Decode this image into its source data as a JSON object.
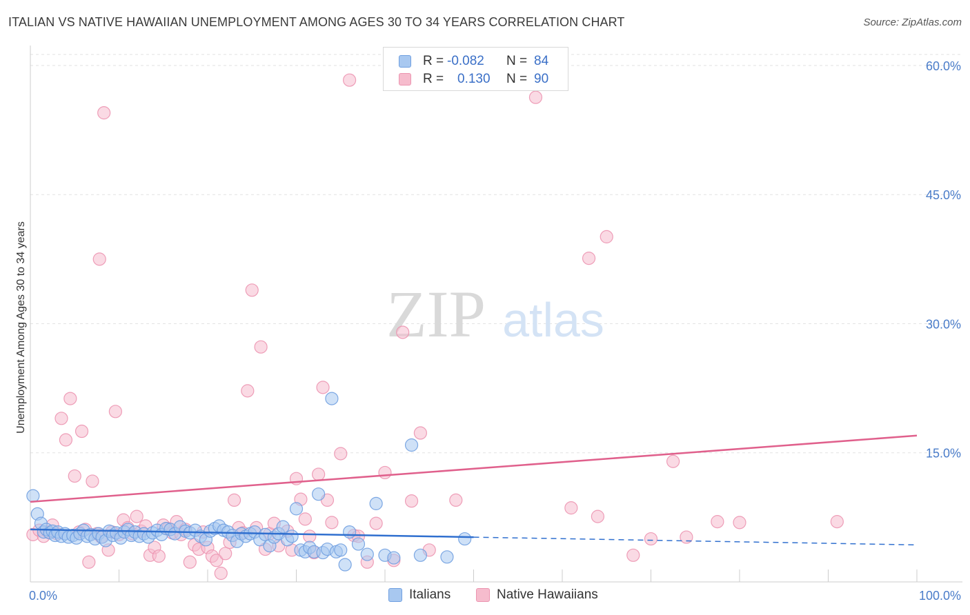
{
  "header": {
    "title": "ITALIAN VS NATIVE HAWAIIAN UNEMPLOYMENT AMONG AGES 30 TO 34 YEARS CORRELATION CHART",
    "source": "Source: ZipAtlas.com"
  },
  "watermark": {
    "zip": "ZIP",
    "atlas": "atlas"
  },
  "legend": {
    "r_label": "R =",
    "n_label": "N =",
    "rows": [
      {
        "r": "-0.082",
        "n": "84"
      },
      {
        "r": "0.130",
        "n": "90"
      }
    ]
  },
  "chart_data": {
    "type": "scatter",
    "title": "ITALIAN VS NATIVE HAWAIIAN UNEMPLOYMENT AMONG AGES 30 TO 34 YEARS CORRELATION CHART",
    "xlabel": "",
    "ylabel": "Unemployment Among Ages 30 to 34 years",
    "xlim": [
      0,
      100
    ],
    "ylim": [
      0,
      62
    ],
    "x_tick_labels": [
      "0.0%",
      "100.0%"
    ],
    "y_ticks": [
      15,
      30,
      45,
      60
    ],
    "y_tick_labels": [
      "15.0%",
      "30.0%",
      "45.0%",
      "60.0%"
    ],
    "grid": true,
    "legend_position": "top-center",
    "colors": {
      "italians_fill": "#a8c8f0",
      "italians_stroke": "#6f9fe0",
      "italians_line": "#2f6fcf",
      "hawaiians_fill": "#f6bccd",
      "hawaiians_stroke": "#ec94b0",
      "hawaiians_line": "#e0608c",
      "tick_label": "#4a7cc9",
      "grid": "#e2e2e2"
    },
    "series": [
      {
        "name": "Italians",
        "r": -0.082,
        "n": 84,
        "trend": {
          "x0": 0,
          "y0": 6.1,
          "x1": 100,
          "y1": 4.3,
          "solid_until": 50
        },
        "points": [
          [
            0.3,
            10.0
          ],
          [
            0.8,
            7.9
          ],
          [
            1.2,
            6.8
          ],
          [
            1.5,
            5.8
          ],
          [
            1.8,
            6.1
          ],
          [
            2.2,
            5.7
          ],
          [
            2.5,
            5.9
          ],
          [
            2.8,
            5.4
          ],
          [
            3.1,
            5.8
          ],
          [
            3.5,
            5.3
          ],
          [
            3.9,
            5.6
          ],
          [
            4.3,
            5.2
          ],
          [
            4.8,
            5.4
          ],
          [
            5.2,
            5.1
          ],
          [
            5.6,
            5.6
          ],
          [
            6.0,
            6.0
          ],
          [
            6.4,
            5.3
          ],
          [
            6.8,
            5.5
          ],
          [
            7.3,
            5.0
          ],
          [
            7.7,
            5.6
          ],
          [
            8.1,
            5.2
          ],
          [
            8.5,
            4.8
          ],
          [
            8.9,
            5.9
          ],
          [
            9.3,
            5.4
          ],
          [
            9.7,
            5.7
          ],
          [
            10.2,
            5.1
          ],
          [
            10.6,
            5.8
          ],
          [
            11.0,
            6.1
          ],
          [
            11.4,
            5.4
          ],
          [
            11.8,
            5.8
          ],
          [
            12.3,
            5.3
          ],
          [
            12.8,
            5.6
          ],
          [
            13.3,
            5.2
          ],
          [
            13.8,
            5.7
          ],
          [
            14.3,
            6.0
          ],
          [
            14.8,
            5.5
          ],
          [
            15.3,
            6.2
          ],
          [
            15.8,
            6.1
          ],
          [
            16.3,
            5.6
          ],
          [
            16.9,
            6.4
          ],
          [
            17.5,
            5.9
          ],
          [
            18.0,
            5.7
          ],
          [
            18.6,
            6.0
          ],
          [
            19.2,
            5.3
          ],
          [
            19.8,
            4.9
          ],
          [
            20.3,
            5.9
          ],
          [
            20.8,
            6.2
          ],
          [
            21.3,
            6.5
          ],
          [
            21.8,
            6.0
          ],
          [
            22.3,
            5.8
          ],
          [
            22.8,
            5.4
          ],
          [
            23.3,
            4.7
          ],
          [
            23.8,
            5.6
          ],
          [
            24.3,
            5.3
          ],
          [
            24.8,
            5.6
          ],
          [
            25.3,
            5.8
          ],
          [
            25.9,
            4.9
          ],
          [
            26.5,
            5.5
          ],
          [
            27.0,
            4.2
          ],
          [
            27.5,
            5.2
          ],
          [
            28.0,
            5.6
          ],
          [
            28.5,
            6.4
          ],
          [
            29.0,
            4.9
          ],
          [
            29.5,
            5.3
          ],
          [
            30.0,
            8.5
          ],
          [
            30.5,
            3.7
          ],
          [
            31.0,
            3.5
          ],
          [
            31.5,
            4.0
          ],
          [
            32.0,
            3.5
          ],
          [
            32.5,
            10.2
          ],
          [
            33.0,
            3.4
          ],
          [
            33.5,
            3.8
          ],
          [
            34.0,
            21.3
          ],
          [
            34.5,
            3.5
          ],
          [
            35.0,
            3.7
          ],
          [
            35.5,
            2.0
          ],
          [
            36.0,
            5.8
          ],
          [
            37.0,
            4.4
          ],
          [
            38.0,
            3.2
          ],
          [
            39.0,
            9.1
          ],
          [
            40.0,
            3.1
          ],
          [
            41.0,
            2.8
          ],
          [
            43.0,
            15.9
          ],
          [
            44.0,
            3.1
          ],
          [
            47.0,
            2.9
          ],
          [
            49.0,
            5.0
          ]
        ]
      },
      {
        "name": "Native Hawaiians",
        "r": 0.13,
        "n": 90,
        "trend": {
          "x0": 0,
          "y0": 9.3,
          "x1": 100,
          "y1": 17.0
        },
        "points": [
          [
            0.3,
            5.5
          ],
          [
            1.0,
            6.0
          ],
          [
            1.5,
            5.3
          ],
          [
            2.0,
            5.8
          ],
          [
            2.5,
            6.6
          ],
          [
            3.0,
            5.6
          ],
          [
            3.5,
            19.0
          ],
          [
            4.0,
            16.5
          ],
          [
            4.5,
            21.3
          ],
          [
            5.0,
            12.3
          ],
          [
            5.5,
            5.8
          ],
          [
            5.8,
            17.5
          ],
          [
            6.2,
            6.1
          ],
          [
            6.6,
            2.3
          ],
          [
            7.0,
            11.7
          ],
          [
            7.5,
            5.6
          ],
          [
            7.8,
            37.5
          ],
          [
            8.0,
            5.2
          ],
          [
            8.3,
            54.5
          ],
          [
            8.8,
            3.7
          ],
          [
            9.2,
            5.8
          ],
          [
            9.6,
            19.8
          ],
          [
            10.0,
            5.5
          ],
          [
            10.5,
            7.2
          ],
          [
            11.0,
            6.3
          ],
          [
            11.5,
            5.6
          ],
          [
            12.0,
            7.6
          ],
          [
            12.5,
            5.9
          ],
          [
            13.0,
            6.5
          ],
          [
            13.5,
            3.1
          ],
          [
            14.0,
            4.0
          ],
          [
            14.5,
            3.0
          ],
          [
            15.0,
            6.6
          ],
          [
            15.5,
            6.2
          ],
          [
            16.0,
            5.7
          ],
          [
            16.5,
            7.0
          ],
          [
            17.0,
            5.5
          ],
          [
            17.5,
            6.1
          ],
          [
            18.0,
            2.3
          ],
          [
            18.5,
            4.3
          ],
          [
            19.0,
            3.8
          ],
          [
            19.5,
            5.8
          ],
          [
            20.0,
            4.0
          ],
          [
            20.5,
            3.0
          ],
          [
            21.0,
            2.5
          ],
          [
            21.5,
            1.0
          ],
          [
            22.0,
            3.3
          ],
          [
            22.5,
            4.6
          ],
          [
            23.0,
            9.5
          ],
          [
            23.5,
            6.3
          ],
          [
            24.0,
            5.7
          ],
          [
            24.5,
            22.2
          ],
          [
            25.0,
            33.9
          ],
          [
            25.5,
            6.3
          ],
          [
            26.0,
            27.3
          ],
          [
            26.5,
            3.8
          ],
          [
            27.0,
            5.6
          ],
          [
            27.5,
            6.8
          ],
          [
            28.0,
            4.2
          ],
          [
            29.0,
            5.9
          ],
          [
            29.5,
            3.7
          ],
          [
            30.0,
            12.0
          ],
          [
            30.5,
            9.6
          ],
          [
            31.0,
            7.3
          ],
          [
            31.5,
            5.3
          ],
          [
            32.0,
            3.4
          ],
          [
            32.5,
            12.5
          ],
          [
            33.0,
            22.6
          ],
          [
            33.5,
            9.5
          ],
          [
            34.0,
            6.9
          ],
          [
            35.0,
            14.9
          ],
          [
            36.0,
            58.3
          ],
          [
            36.5,
            5.4
          ],
          [
            37.0,
            5.3
          ],
          [
            38.0,
            2.3
          ],
          [
            39.0,
            6.8
          ],
          [
            40.0,
            12.7
          ],
          [
            41.0,
            2.5
          ],
          [
            42.0,
            29.0
          ],
          [
            43.0,
            9.4
          ],
          [
            44.0,
            17.3
          ],
          [
            45.0,
            3.7
          ],
          [
            48.0,
            9.5
          ],
          [
            57.0,
            56.3
          ],
          [
            61.0,
            8.6
          ],
          [
            63.0,
            37.6
          ],
          [
            64.0,
            7.6
          ],
          [
            65.0,
            40.1
          ],
          [
            68.0,
            3.1
          ],
          [
            70.0,
            5.0
          ],
          [
            72.5,
            14.0
          ],
          [
            74.0,
            5.2
          ],
          [
            77.5,
            7.0
          ],
          [
            80.0,
            6.9
          ],
          [
            91.0,
            7.0
          ]
        ]
      }
    ]
  },
  "bottom_legend": {
    "italians": "Italians",
    "hawaiians": "Native Hawaiians"
  }
}
